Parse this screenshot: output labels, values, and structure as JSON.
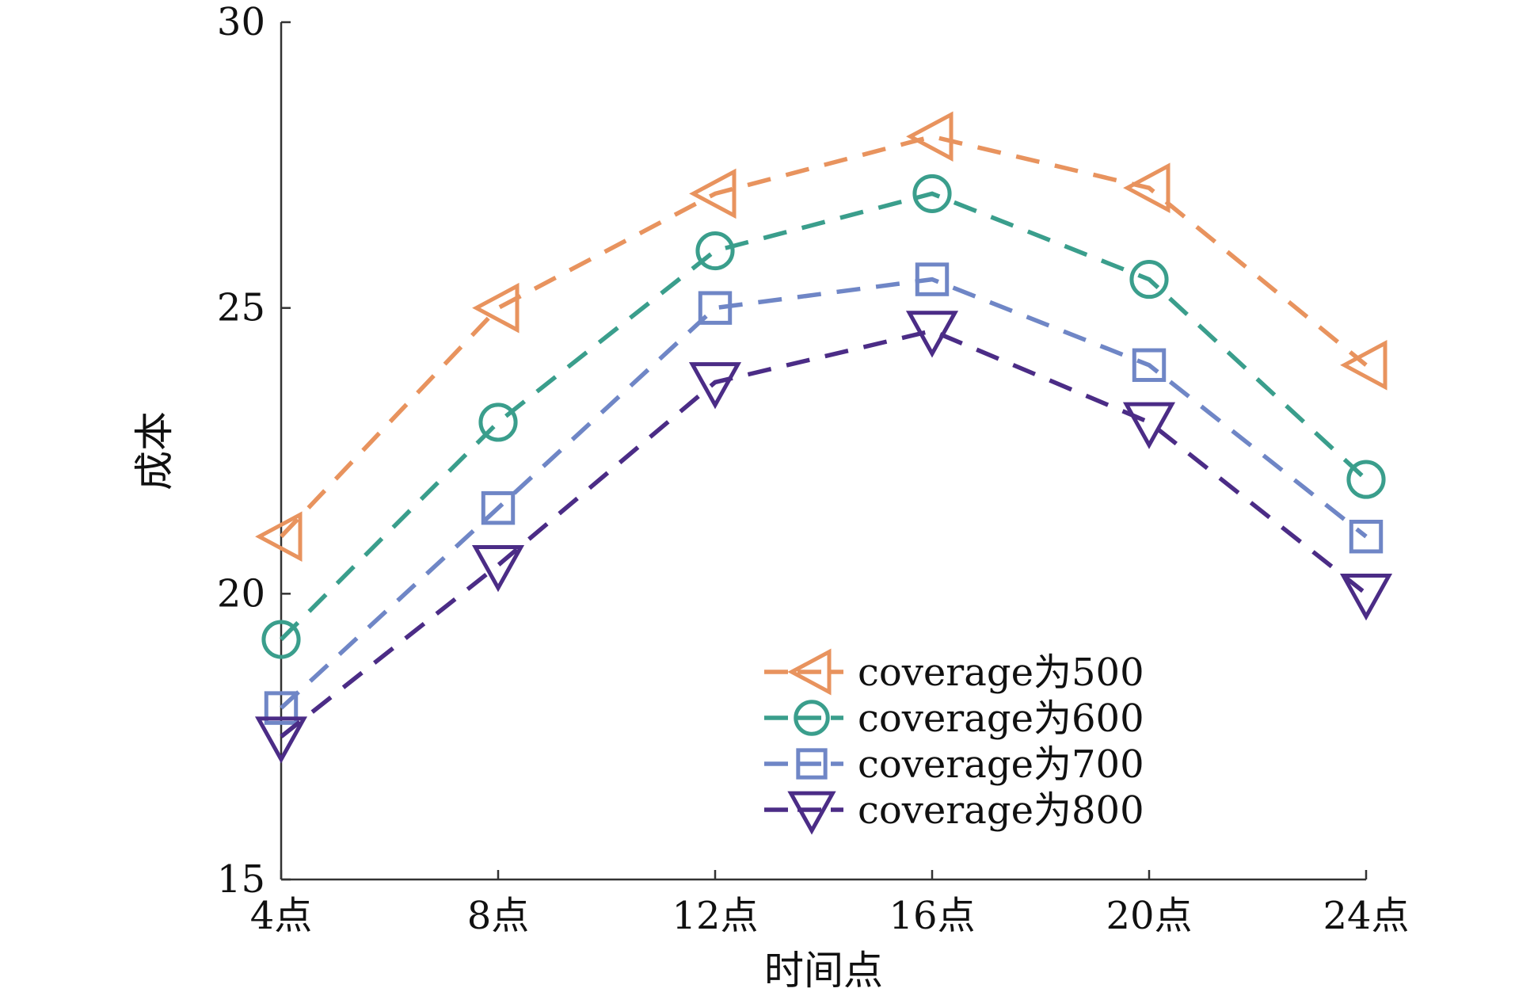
{
  "chart_data": {
    "type": "line",
    "title": "",
    "xlabel": "时间点",
    "ylabel": "成本",
    "categories": [
      "4点",
      "8点",
      "12点",
      "16点",
      "20点",
      "24点"
    ],
    "ylim": [
      15,
      30
    ],
    "yticks": [
      "15",
      "20",
      "25",
      "30"
    ],
    "grid": false,
    "legend_position": "lower-right",
    "series": [
      {
        "name": "coverage为500",
        "marker": "triangle-left",
        "color": "#E8935E",
        "values": [
          21.0,
          25.0,
          27.0,
          28.0,
          27.1,
          24.0
        ]
      },
      {
        "name": "coverage为600",
        "marker": "circle",
        "color": "#3A9E8C",
        "values": [
          19.2,
          23.0,
          26.0,
          27.0,
          25.5,
          22.0
        ]
      },
      {
        "name": "coverage为700",
        "marker": "square",
        "color": "#6F86C6",
        "values": [
          18.0,
          21.5,
          25.0,
          25.5,
          24.0,
          21.0
        ]
      },
      {
        "name": "coverage为800",
        "marker": "triangle-down",
        "color": "#4B2C86",
        "values": [
          17.5,
          20.5,
          23.7,
          24.6,
          23.0,
          20.0
        ]
      }
    ]
  }
}
